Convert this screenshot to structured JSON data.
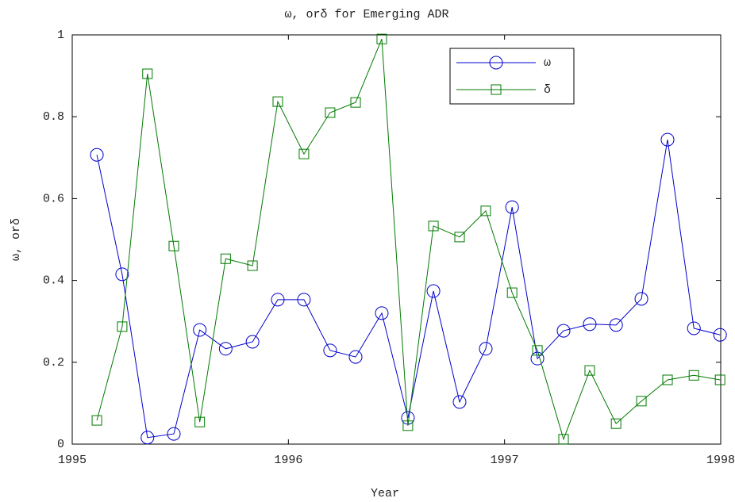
{
  "chart_data": {
    "type": "line",
    "title": "ω, orδ for Emerging ADR",
    "x_label": "Year",
    "y_label": "ω, orδ",
    "x": [
      1995.114,
      1995.231,
      1995.348,
      1995.47,
      1995.59,
      1995.71,
      1995.834,
      1995.951,
      1996.072,
      1996.193,
      1996.311,
      1996.432,
      1996.553,
      1996.671,
      1996.792,
      1996.913,
      1997.035,
      1997.152,
      1997.273,
      1997.394,
      1997.516,
      1997.633,
      1997.754,
      1997.876,
      1997.997
    ],
    "series": [
      {
        "name": "ω",
        "color": "#0000cc",
        "marker": "circle",
        "values": [
          0.707,
          0.415,
          0.016,
          0.025,
          0.279,
          0.233,
          0.25,
          0.353,
          0.353,
          0.229,
          0.213,
          0.32,
          0.064,
          0.374,
          0.103,
          0.233,
          0.579,
          0.209,
          0.277,
          0.293,
          0.291,
          0.355,
          0.744,
          0.283,
          0.267
        ]
      },
      {
        "name": "δ",
        "color": "#007a00",
        "marker": "square",
        "values": [
          0.058,
          0.287,
          0.905,
          0.484,
          0.054,
          0.453,
          0.436,
          0.837,
          0.709,
          0.81,
          0.835,
          0.99,
          0.045,
          0.533,
          0.506,
          0.57,
          0.37,
          0.229,
          0.012,
          0.18,
          0.05,
          0.105,
          0.157,
          0.168,
          0.157
        ]
      }
    ],
    "xlim": [
      1995,
      1998
    ],
    "xticks": [
      1995,
      1996,
      1997,
      1998
    ],
    "ylim": [
      0,
      1
    ],
    "yticks": [
      0,
      0.2,
      0.4,
      0.6,
      0.8,
      1
    ],
    "grid": false,
    "legend": "upper right"
  }
}
